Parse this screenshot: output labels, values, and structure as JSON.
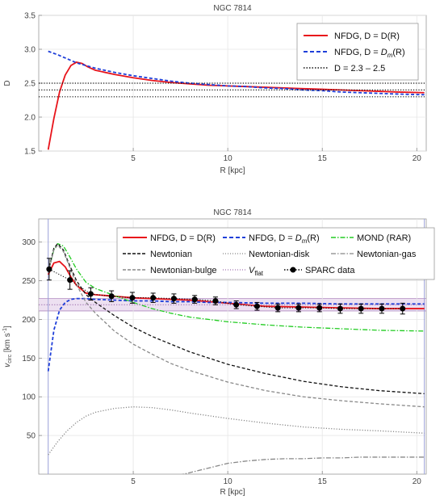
{
  "chart_data": [
    {
      "type": "line",
      "title": "NGC 7814",
      "xlabel": "R [kpc]",
      "ylabel": "D",
      "xlim": [
        0,
        20.5
      ],
      "ylim": [
        1.5,
        3.5
      ],
      "xticks": [
        5,
        10,
        15,
        20
      ],
      "yticks": [
        1.5,
        2.0,
        2.5,
        3.0,
        3.5
      ],
      "yticks_labels": [
        "1.5",
        "2.0",
        "2.5",
        "3.0",
        "3.5"
      ],
      "legend_position": "top-right",
      "series": [
        {
          "name": "NFDG, D = D(R)",
          "color": "#e8141b",
          "dash": "solid",
          "x": [
            0.5,
            0.8,
            1.1,
            1.4,
            1.7,
            2.0,
            2.3,
            2.6,
            3.0,
            3.5,
            4.0,
            5.0,
            6.0,
            7.0,
            8.0,
            9.0,
            10.0,
            11.0,
            12.0,
            13.0,
            14.0,
            15.0,
            16.0,
            17.0,
            18.0,
            19.0,
            20.4
          ],
          "y": [
            1.52,
            1.98,
            2.37,
            2.62,
            2.76,
            2.81,
            2.79,
            2.74,
            2.69,
            2.66,
            2.63,
            2.58,
            2.54,
            2.51,
            2.49,
            2.47,
            2.46,
            2.45,
            2.44,
            2.43,
            2.42,
            2.41,
            2.4,
            2.39,
            2.38,
            2.37,
            2.36
          ]
        },
        {
          "name": "NFDG, D = D_m(R)",
          "name_prefix": "NFDG, D = ",
          "name_italic": "D",
          "name_sub": "m",
          "name_suffix": "(R)",
          "color": "#1f3fd9",
          "dash": "dashed",
          "x": [
            0.5,
            1.0,
            2.0,
            3.0,
            4.0,
            5.0,
            6.0,
            7.0,
            8.0,
            9.0,
            10.0,
            11.0,
            12.0,
            13.0,
            14.0,
            15.0,
            16.0,
            17.0,
            18.0,
            19.0,
            20.4
          ],
          "y": [
            2.97,
            2.92,
            2.8,
            2.72,
            2.66,
            2.61,
            2.57,
            2.53,
            2.5,
            2.48,
            2.46,
            2.45,
            2.43,
            2.42,
            2.4,
            2.39,
            2.37,
            2.36,
            2.35,
            2.34,
            2.33
          ]
        },
        {
          "name": "D = 2.3 – 2.5",
          "color": "#111111",
          "dash": "dotted",
          "hlines": [
            2.3,
            2.4,
            2.5
          ]
        }
      ]
    },
    {
      "type": "line",
      "title": "NGC 7814",
      "xlabel": "R [kpc]",
      "ylabel": "v_circ [km s^-1]",
      "ylabel_main": "v",
      "ylabel_sub": "circ",
      "ylabel_unit": " [km s",
      "ylabel_sup": "-1",
      "ylabel_close": "]",
      "xlim": [
        0,
        20.5
      ],
      "ylim": [
        0,
        330
      ],
      "xticks": [
        5,
        10,
        15,
        20
      ],
      "yticks": [
        50,
        100,
        150,
        200,
        250,
        300
      ],
      "legend_position": "top-right",
      "vflat_band": [
        211,
        227
      ],
      "series": [
        {
          "name": "NFDG, D = D(R)",
          "color": "#e8141b",
          "dash": "solid",
          "x": [
            0.5,
            0.8,
            1.1,
            1.4,
            1.7,
            2.0,
            2.5,
            3.0,
            3.5,
            4.0,
            5.0,
            6.0,
            7.0,
            8.0,
            9.0,
            10.0,
            11.0,
            12.0,
            14.0,
            16.0,
            18.0,
            20.4
          ],
          "y": [
            258,
            273,
            275,
            268,
            255,
            244,
            234,
            232,
            231,
            230,
            228,
            227,
            226,
            225,
            223,
            221,
            219,
            217,
            216,
            215,
            214,
            214
          ]
        },
        {
          "name": "NFDG, D = D_m(R)",
          "name_prefix": "NFDG, D = ",
          "name_italic": "D",
          "name_sub": "m",
          "name_suffix": "(R)",
          "color": "#1f3fd9",
          "dash": "dashed",
          "x": [
            0.5,
            0.8,
            1.1,
            1.4,
            1.7,
            2.0,
            2.5,
            3.0,
            4.0,
            5.0,
            6.0,
            7.0,
            8.0,
            9.0,
            10.0,
            12.0,
            14.0,
            16.0,
            18.0,
            20.4
          ],
          "y": [
            133,
            186,
            212,
            222,
            226,
            227,
            227,
            226,
            225,
            224,
            224,
            223,
            223,
            222,
            222,
            221,
            221,
            220,
            220,
            220
          ]
        },
        {
          "name": "MOND (RAR)",
          "color": "#22cc22",
          "dash": "dashdot",
          "x": [
            0.5,
            0.8,
            1.0,
            1.3,
            1.6,
            2.0,
            2.5,
            3.0,
            4.0,
            5.0,
            6.0,
            7.0,
            8.0,
            10.0,
            12.0,
            14.0,
            16.0,
            18.0,
            20.4
          ],
          "y": [
            262,
            290,
            298,
            295,
            283,
            265,
            248,
            240,
            231,
            222,
            214,
            208,
            203,
            197,
            193,
            190,
            188,
            186,
            185
          ]
        },
        {
          "name": "Newtonian",
          "color": "#111111",
          "dash": "dashed",
          "x": [
            0.5,
            0.8,
            1.0,
            1.3,
            1.6,
            2.0,
            2.5,
            3.0,
            4.0,
            5.0,
            6.0,
            7.0,
            8.0,
            10.0,
            12.0,
            14.0,
            16.0,
            18.0,
            20.4
          ],
          "y": [
            262,
            292,
            298,
            290,
            272,
            250,
            232,
            222,
            205,
            190,
            178,
            168,
            158,
            142,
            130,
            120,
            113,
            108,
            104
          ]
        },
        {
          "name": "Newtonian-disk",
          "color": "#888888",
          "dash": "dotted",
          "x": [
            0.5,
            1.0,
            1.5,
            2.0,
            2.5,
            3.0,
            4.0,
            5.0,
            6.0,
            7.0,
            8.0,
            10.0,
            12.0,
            14.0,
            16.0,
            18.0,
            20.4
          ],
          "y": [
            25,
            42,
            56,
            67,
            75,
            80,
            85,
            87,
            86,
            83,
            79,
            72,
            66,
            61,
            58,
            56,
            53
          ]
        },
        {
          "name": "Newtonian-gas",
          "color": "#888888",
          "dash": "dashdot",
          "x": [
            6.0,
            7.0,
            8.0,
            9.0,
            10.0,
            11.0,
            12.0,
            13.0,
            14.0,
            15.0,
            16.0,
            17.0,
            18.0,
            19.0,
            20.4
          ],
          "y": [
            -10,
            -4,
            2,
            8,
            14,
            17,
            19,
            20,
            20,
            21,
            21,
            22,
            22,
            22,
            22
          ]
        },
        {
          "name": "Newtonian-bulge",
          "color": "#888888",
          "dash": "dashed",
          "x": [
            0.5,
            0.8,
            1.0,
            1.3,
            1.6,
            2.0,
            2.5,
            3.0,
            4.0,
            5.0,
            6.0,
            7.0,
            8.0,
            10.0,
            12.0,
            14.0,
            16.0,
            18.0,
            20.4
          ],
          "y": [
            260,
            290,
            296,
            288,
            270,
            245,
            222,
            208,
            185,
            168,
            155,
            143,
            134,
            119,
            108,
            100,
            95,
            91,
            87
          ]
        },
        {
          "name": "V_flat",
          "name_italic": "V",
          "name_sub": "flat",
          "color": "#a070b0",
          "dash": "dotted",
          "hlines": [
            219
          ]
        },
        {
          "name": "SPARC data",
          "type": "errorbar",
          "color": "#000000",
          "x": [
            0.55,
            1.65,
            2.75,
            3.85,
            4.95,
            6.05,
            7.15,
            8.25,
            9.35,
            10.45,
            11.55,
            12.65,
            13.75,
            14.85,
            15.95,
            17.05,
            18.15,
            19.25
          ],
          "y": [
            265,
            251,
            233,
            230,
            228,
            228,
            227,
            226,
            224,
            219,
            217,
            215,
            215,
            215,
            214,
            214,
            214,
            214
          ],
          "err": [
            14,
            12,
            8,
            7,
            7,
            6,
            6,
            5,
            5,
            5,
            5,
            5,
            5,
            5,
            6,
            6,
            6,
            7
          ]
        }
      ]
    }
  ]
}
